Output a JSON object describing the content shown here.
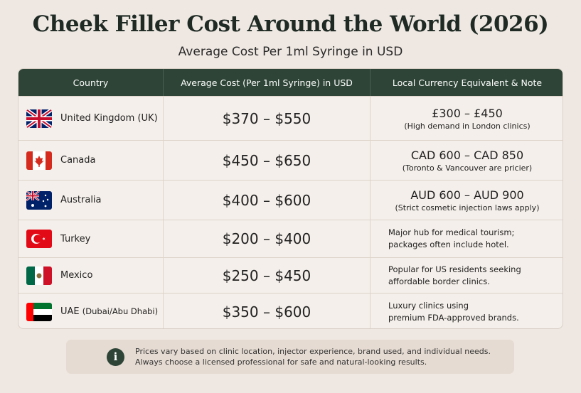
{
  "title": "Cheek Filler Cost Around the World (2026)",
  "subtitle": "Average Cost Per 1ml Syringe in USD",
  "table": {
    "headers": [
      "Country",
      "Average Cost (Per 1ml Syringe) in USD",
      "Local Currency Equivalent & Note"
    ],
    "rows": [
      {
        "country": "United Kingdom (UK)",
        "cost": "$370 – $550",
        "local_amount": "£300 – £450",
        "local_note": "(High demand in London clinics)"
      },
      {
        "country": "Canada",
        "cost": "$450 – $650",
        "local_amount": "CAD 600 – CAD 850",
        "local_note": "(Toronto & Vancouver are pricier)"
      },
      {
        "country": "Australia",
        "cost": "$400 – $600",
        "local_amount": "AUD 600 – AUD 900",
        "local_note": "(Strict cosmetic injection laws apply)"
      },
      {
        "country": "Turkey",
        "cost": "$200 – $400",
        "local_lines": [
          "Major hub for medical tourism;",
          "packages often include hotel."
        ]
      },
      {
        "country": "Mexico",
        "cost": "$250 – $450",
        "local_lines": [
          "Popular for US residents seeking",
          "affordable border clinics."
        ]
      },
      {
        "country": "UAE",
        "country_detail": "(Dubai/Abu Dhabi)",
        "cost": "$350 – $600",
        "local_lines": [
          "Luxury clinics using",
          "premium FDA-approved brands."
        ]
      }
    ]
  },
  "footnote": {
    "icon": "i",
    "lines": [
      "Prices vary based on clinic location, injector experience, brand used, and individual needs.",
      "Always choose a licensed professional for safe and natural-looking results."
    ]
  }
}
